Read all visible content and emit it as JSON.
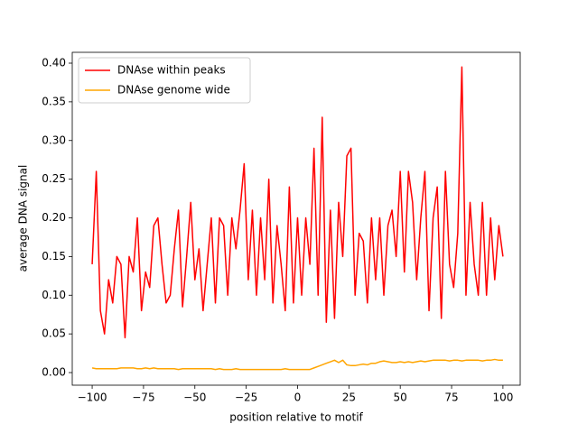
{
  "chart_data": {
    "type": "line",
    "xlabel": "position relative to motif",
    "ylabel": "average DNA signal",
    "x": [
      -100,
      -98,
      -96,
      -94,
      -92,
      -90,
      -88,
      -86,
      -84,
      -82,
      -80,
      -78,
      -76,
      -74,
      -72,
      -70,
      -68,
      -66,
      -64,
      -62,
      -60,
      -58,
      -56,
      -54,
      -52,
      -50,
      -48,
      -46,
      -44,
      -42,
      -40,
      -38,
      -36,
      -34,
      -32,
      -30,
      -28,
      -26,
      -24,
      -22,
      -20,
      -18,
      -16,
      -14,
      -12,
      -10,
      -8,
      -6,
      -4,
      -2,
      0,
      2,
      4,
      6,
      8,
      10,
      12,
      14,
      16,
      18,
      20,
      22,
      24,
      26,
      28,
      30,
      32,
      34,
      36,
      38,
      40,
      42,
      44,
      46,
      48,
      50,
      52,
      54,
      56,
      58,
      60,
      62,
      64,
      66,
      68,
      70,
      72,
      74,
      76,
      78,
      80,
      82,
      84,
      86,
      88,
      90,
      92,
      94,
      96,
      98,
      100
    ],
    "series": [
      {
        "name": "DNAse within peaks",
        "color": "#ff0000",
        "values": [
          0.14,
          0.26,
          0.08,
          0.05,
          0.12,
          0.09,
          0.15,
          0.14,
          0.045,
          0.15,
          0.13,
          0.2,
          0.08,
          0.13,
          0.11,
          0.19,
          0.2,
          0.14,
          0.09,
          0.1,
          0.16,
          0.21,
          0.085,
          0.15,
          0.22,
          0.12,
          0.16,
          0.08,
          0.14,
          0.2,
          0.09,
          0.2,
          0.19,
          0.1,
          0.2,
          0.16,
          0.21,
          0.27,
          0.12,
          0.21,
          0.1,
          0.2,
          0.12,
          0.25,
          0.09,
          0.19,
          0.14,
          0.08,
          0.24,
          0.09,
          0.2,
          0.1,
          0.2,
          0.14,
          0.29,
          0.1,
          0.33,
          0.065,
          0.21,
          0.07,
          0.22,
          0.15,
          0.28,
          0.29,
          0.1,
          0.18,
          0.17,
          0.09,
          0.2,
          0.12,
          0.2,
          0.1,
          0.19,
          0.21,
          0.15,
          0.26,
          0.13,
          0.26,
          0.22,
          0.12,
          0.2,
          0.26,
          0.08,
          0.2,
          0.24,
          0.07,
          0.26,
          0.14,
          0.11,
          0.18,
          0.395,
          0.1,
          0.22,
          0.14,
          0.1,
          0.22,
          0.1,
          0.2,
          0.12,
          0.19,
          0.15
        ]
      },
      {
        "name": "DNAse genome wide",
        "color": "#ffa500",
        "values": [
          0.006,
          0.005,
          0.005,
          0.005,
          0.005,
          0.005,
          0.005,
          0.006,
          0.006,
          0.006,
          0.006,
          0.005,
          0.005,
          0.006,
          0.005,
          0.006,
          0.005,
          0.005,
          0.005,
          0.005,
          0.005,
          0.004,
          0.005,
          0.005,
          0.005,
          0.005,
          0.005,
          0.005,
          0.005,
          0.005,
          0.004,
          0.005,
          0.004,
          0.004,
          0.004,
          0.005,
          0.004,
          0.004,
          0.004,
          0.004,
          0.004,
          0.004,
          0.004,
          0.004,
          0.004,
          0.004,
          0.004,
          0.005,
          0.004,
          0.004,
          0.004,
          0.004,
          0.004,
          0.004,
          0.006,
          0.008,
          0.01,
          0.012,
          0.014,
          0.016,
          0.013,
          0.016,
          0.01,
          0.009,
          0.009,
          0.01,
          0.011,
          0.01,
          0.012,
          0.012,
          0.014,
          0.015,
          0.014,
          0.013,
          0.013,
          0.014,
          0.013,
          0.014,
          0.013,
          0.014,
          0.015,
          0.014,
          0.015,
          0.016,
          0.016,
          0.016,
          0.016,
          0.015,
          0.016,
          0.016,
          0.015,
          0.016,
          0.016,
          0.016,
          0.016,
          0.015,
          0.016,
          0.016,
          0.017,
          0.016,
          0.016
        ]
      }
    ],
    "xlim": [
      -109.7,
      108.4
    ],
    "xticks": [
      {
        "value": -100,
        "label": "−100"
      },
      {
        "value": -75,
        "label": "−75"
      },
      {
        "value": -50,
        "label": "−50"
      },
      {
        "value": -25,
        "label": "−25"
      },
      0,
      25,
      50,
      75,
      100
    ],
    "ylim": [
      -0.0163,
      0.414
    ],
    "yticks": [
      {
        "value": 0,
        "label": "0.00"
      },
      {
        "value": 0.05,
        "label": "0.05"
      },
      {
        "value": 0.1,
        "label": "0.10"
      },
      {
        "value": 0.15,
        "label": "0.15"
      },
      {
        "value": 0.2,
        "label": "0.20"
      },
      {
        "value": 0.25,
        "label": "0.25"
      },
      {
        "value": 0.3,
        "label": "0.30"
      },
      {
        "value": 0.35,
        "label": "0.35"
      },
      {
        "value": 0.4,
        "label": "0.40"
      }
    ],
    "legend": "upper left",
    "grid": false
  }
}
